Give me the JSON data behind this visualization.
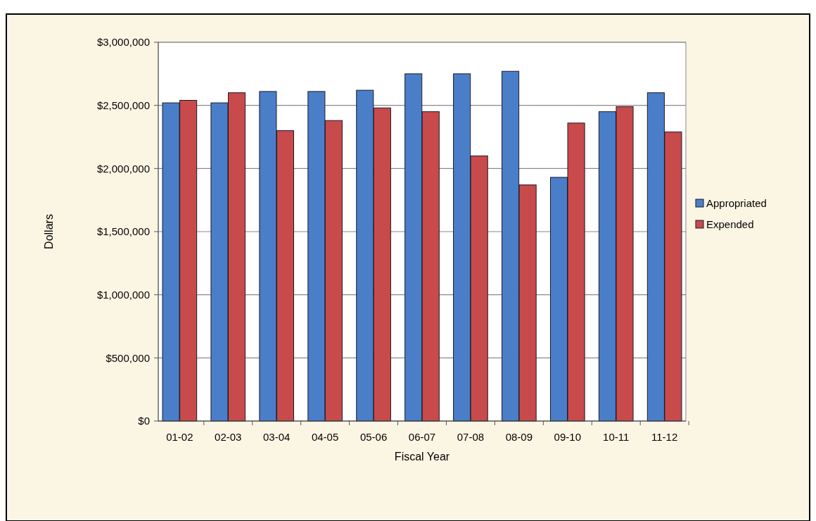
{
  "chart_data": {
    "type": "bar",
    "xlabel": "Fiscal Year",
    "ylabel": "Dollars",
    "categories": [
      "01-02",
      "02-03",
      "03-04",
      "04-05",
      "05-06",
      "06-07",
      "07-08",
      "08-09",
      "09-10",
      "10-11",
      "11-12"
    ],
    "series": [
      {
        "name": "Appropriated",
        "color": "#4a7ec8",
        "values": [
          2520000,
          2520000,
          2610000,
          2610000,
          2620000,
          2750000,
          2750000,
          2770000,
          1930000,
          2450000,
          2600000
        ]
      },
      {
        "name": "Expended",
        "color": "#c94a4a",
        "values": [
          2540000,
          2600000,
          2300000,
          2380000,
          2480000,
          2450000,
          2100000,
          1870000,
          2360000,
          2490000,
          2290000
        ]
      }
    ],
    "ylim": [
      0,
      3000000
    ],
    "yticks": [
      {
        "value": 0,
        "label": "$0"
      },
      {
        "value": 500000,
        "label": "$500,000"
      },
      {
        "value": 1000000,
        "label": "$1,000,000"
      },
      {
        "value": 1500000,
        "label": "$1,500,000"
      },
      {
        "value": 2000000,
        "label": "$2,000,000"
      },
      {
        "value": 2500000,
        "label": "$2,500,000"
      },
      {
        "value": 3000000,
        "label": "$3,000,000"
      }
    ],
    "grid": "y",
    "legend": "right"
  }
}
